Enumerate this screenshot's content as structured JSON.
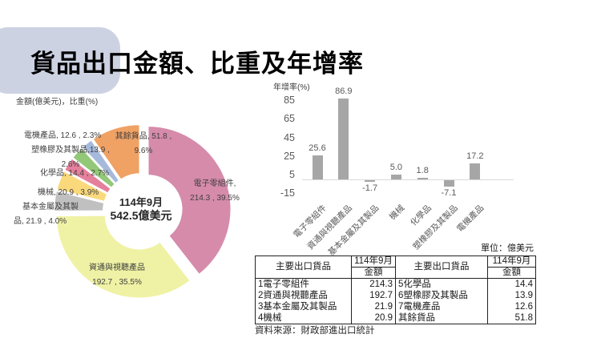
{
  "page": {
    "title": "貨品出口金額、比重及年增率",
    "unit_note": "單位：億美元",
    "source": "資料來源：財政部進出口統計"
  },
  "chart_data": [
    {
      "type": "pie",
      "caption": "金額(億美元)，比重(%)",
      "period": "114年9月",
      "center_label": [
        "114年9月",
        "542.5億美元"
      ],
      "unit": "億美元",
      "slices": [
        {
          "name": "電子零組件",
          "value": 214.3,
          "share_pct": 39.5,
          "color": "#d68bab"
        },
        {
          "name": "資通與視聽產品",
          "value": 192.7,
          "share_pct": 35.5,
          "color": "#eff2a4"
        },
        {
          "name": "基本金屬及其製品",
          "value": 21.9,
          "share_pct": 4.0,
          "color": "#c0c0c0"
        },
        {
          "name": "機械",
          "value": 20.9,
          "share_pct": 3.9,
          "color": "#fad97d"
        },
        {
          "name": "化學品",
          "value": 14.4,
          "share_pct": 2.7,
          "color": "#e5809c"
        },
        {
          "name": "塑橡膠及其製品",
          "value": 13.9,
          "share_pct": 2.6,
          "color": "#92c878"
        },
        {
          "name": "電機產品",
          "value": 12.6,
          "share_pct": 2.3,
          "color": "#a5badb"
        },
        {
          "name": "其餘貨品",
          "value": 51.8,
          "share_pct": 9.6,
          "color": "#f0a164"
        }
      ],
      "labels": [
        {
          "line1": "電子零組件,",
          "line2": "214.3 , 39.5%"
        },
        {
          "line1": "資通與視聽產品",
          "line2": "192.7 , 35.5%"
        },
        {
          "line1": "基本金屬及其製",
          "line2": "品, 21.9 , 4.0%"
        },
        {
          "line1": "機械, 20.9 , 3.9%",
          "line2": ""
        },
        {
          "line1": "化學品, 14.4 , 2.7%",
          "line2": ""
        },
        {
          "line1": "塑橡膠及其製品,13.9 ,",
          "line2": "2.6%"
        },
        {
          "line1": "電機產品, 12.6 , 2.3%",
          "line2": ""
        },
        {
          "line1": "其餘貨品, 51.8 ,",
          "line2": "9.6%"
        }
      ]
    },
    {
      "type": "bar",
      "title": "年增率(%)",
      "categories": [
        "電子零組件",
        "資通與視聽產品",
        "基本金屬及其製品",
        "機械",
        "化學品",
        "塑橡膠及其製品",
        "電機產品"
      ],
      "values": [
        25.6,
        86.9,
        -1.7,
        5.0,
        1.8,
        -7.1,
        17.2
      ],
      "yticks": [
        85,
        65,
        45,
        25,
        5,
        -15
      ],
      "ylim": [
        -15,
        95
      ],
      "bar_color": "#a6a6a6",
      "axis_color": "#d9d9d9",
      "legend": "none",
      "grid": "off"
    }
  ],
  "table": {
    "header": {
      "item": "主要出口貨品",
      "period": "114年9月",
      "amount": "金額"
    },
    "rows": [
      {
        "l_name": "1電子零組件",
        "l_value": "214.3",
        "r_name": "5化學品",
        "r_value": "14.4"
      },
      {
        "l_name": "2資通與視聽產品",
        "l_value": "192.7",
        "r_name": "6塑橡膠及其製品",
        "r_value": "13.9"
      },
      {
        "l_name": "3基本金屬及其製品",
        "l_value": "21.9",
        "r_name": "7電機產品",
        "r_value": "12.6"
      },
      {
        "l_name": "4機械",
        "l_value": "20.9",
        "r_name": "其餘貨品",
        "r_value": "51.8"
      }
    ]
  },
  "colors": {
    "banner": "#cdd2e3",
    "bar": "#a6a6a6",
    "axis": "#d9d9d9"
  }
}
